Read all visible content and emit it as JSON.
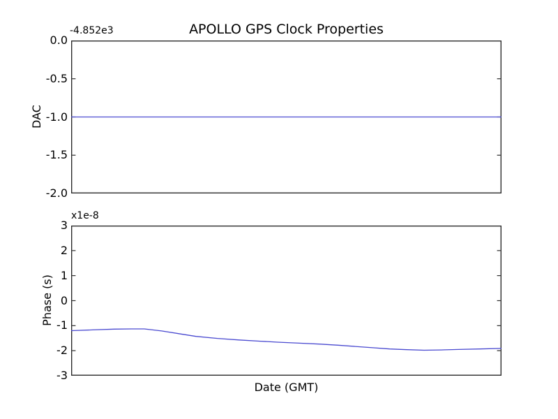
{
  "figure": {
    "title": "APOLLO GPS Clock Properties"
  },
  "chart_data": [
    {
      "type": "line",
      "subplot": "top",
      "title": "APOLLO GPS Clock Properties",
      "ylabel": "DAC",
      "offset_text": "-4.852e3",
      "xlabel": "",
      "ylim": [
        -2.0,
        0.0
      ],
      "yticks": [
        "0.0",
        "-0.5",
        "-1.0",
        "-1.5",
        "-2.0"
      ],
      "ytick_values": [
        0.0,
        -0.5,
        -1.0,
        -1.5,
        -2.0
      ],
      "xticks": [],
      "grid": false,
      "legend": "none",
      "line_color": "#4949d0",
      "series": [
        {
          "name": "DAC",
          "x": [
            0.0,
            1.0
          ],
          "y": [
            -1.0,
            -1.0
          ]
        }
      ]
    },
    {
      "type": "line",
      "subplot": "bottom",
      "ylabel": "Phase (s)",
      "offset_text": "x1e-8",
      "xlabel": "Date (GMT)",
      "ylim": [
        -3,
        3
      ],
      "yticks": [
        "3",
        "2",
        "1",
        "0",
        "-1",
        "-2",
        "-3"
      ],
      "ytick_values": [
        3,
        2,
        1,
        0,
        -1,
        -2,
        -3
      ],
      "xticks": [],
      "grid": false,
      "legend": "none",
      "line_color": "#4949d0",
      "series": [
        {
          "name": "Phase",
          "x": [
            0.0,
            0.05,
            0.1,
            0.14,
            0.17,
            0.21,
            0.25,
            0.29,
            0.34,
            0.39,
            0.44,
            0.48,
            0.53,
            0.58,
            0.62,
            0.66,
            0.7,
            0.74,
            0.78,
            0.82,
            0.86,
            0.9,
            0.95,
            1.0
          ],
          "y": [
            -1.2,
            -1.17,
            -1.14,
            -1.13,
            -1.13,
            -1.21,
            -1.32,
            -1.43,
            -1.51,
            -1.57,
            -1.62,
            -1.66,
            -1.7,
            -1.74,
            -1.78,
            -1.83,
            -1.88,
            -1.93,
            -1.96,
            -1.98,
            -1.97,
            -1.95,
            -1.93,
            -1.91
          ]
        }
      ]
    }
  ]
}
